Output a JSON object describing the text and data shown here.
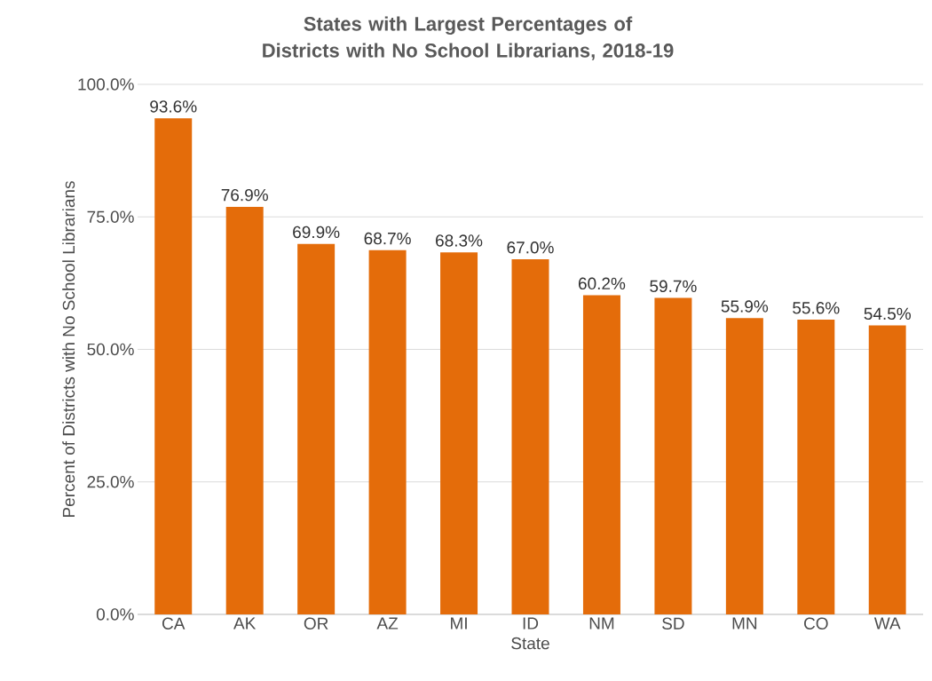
{
  "chart_data": {
    "type": "bar",
    "title": "States with Largest Percentages of Districts with No School Librarians, 2018-19",
    "xlabel": "State",
    "ylabel": "Percent of Districts with No School Librarians",
    "categories": [
      "CA",
      "AK",
      "OR",
      "AZ",
      "MI",
      "ID",
      "NM",
      "SD",
      "MN",
      "CO",
      "WA"
    ],
    "values": [
      93.6,
      76.9,
      69.9,
      68.7,
      68.3,
      67.0,
      60.2,
      59.7,
      55.9,
      55.6,
      54.5
    ],
    "value_labels": [
      "93.6%",
      "76.9%",
      "69.9%",
      "68.7%",
      "68.3%",
      "67.0%",
      "60.2%",
      "59.7%",
      "55.9%",
      "55.6%",
      "54.5%"
    ],
    "color": "#e46c0a",
    "ylim": [
      0,
      100
    ],
    "yticks": [
      {
        "value": 0,
        "label": "0.0%"
      },
      {
        "value": 25,
        "label": "25.0%"
      },
      {
        "value": 50,
        "label": "50.0%"
      },
      {
        "value": 75,
        "label": "75.0%"
      },
      {
        "value": 100,
        "label": "100.0%"
      }
    ],
    "grid": "y"
  }
}
